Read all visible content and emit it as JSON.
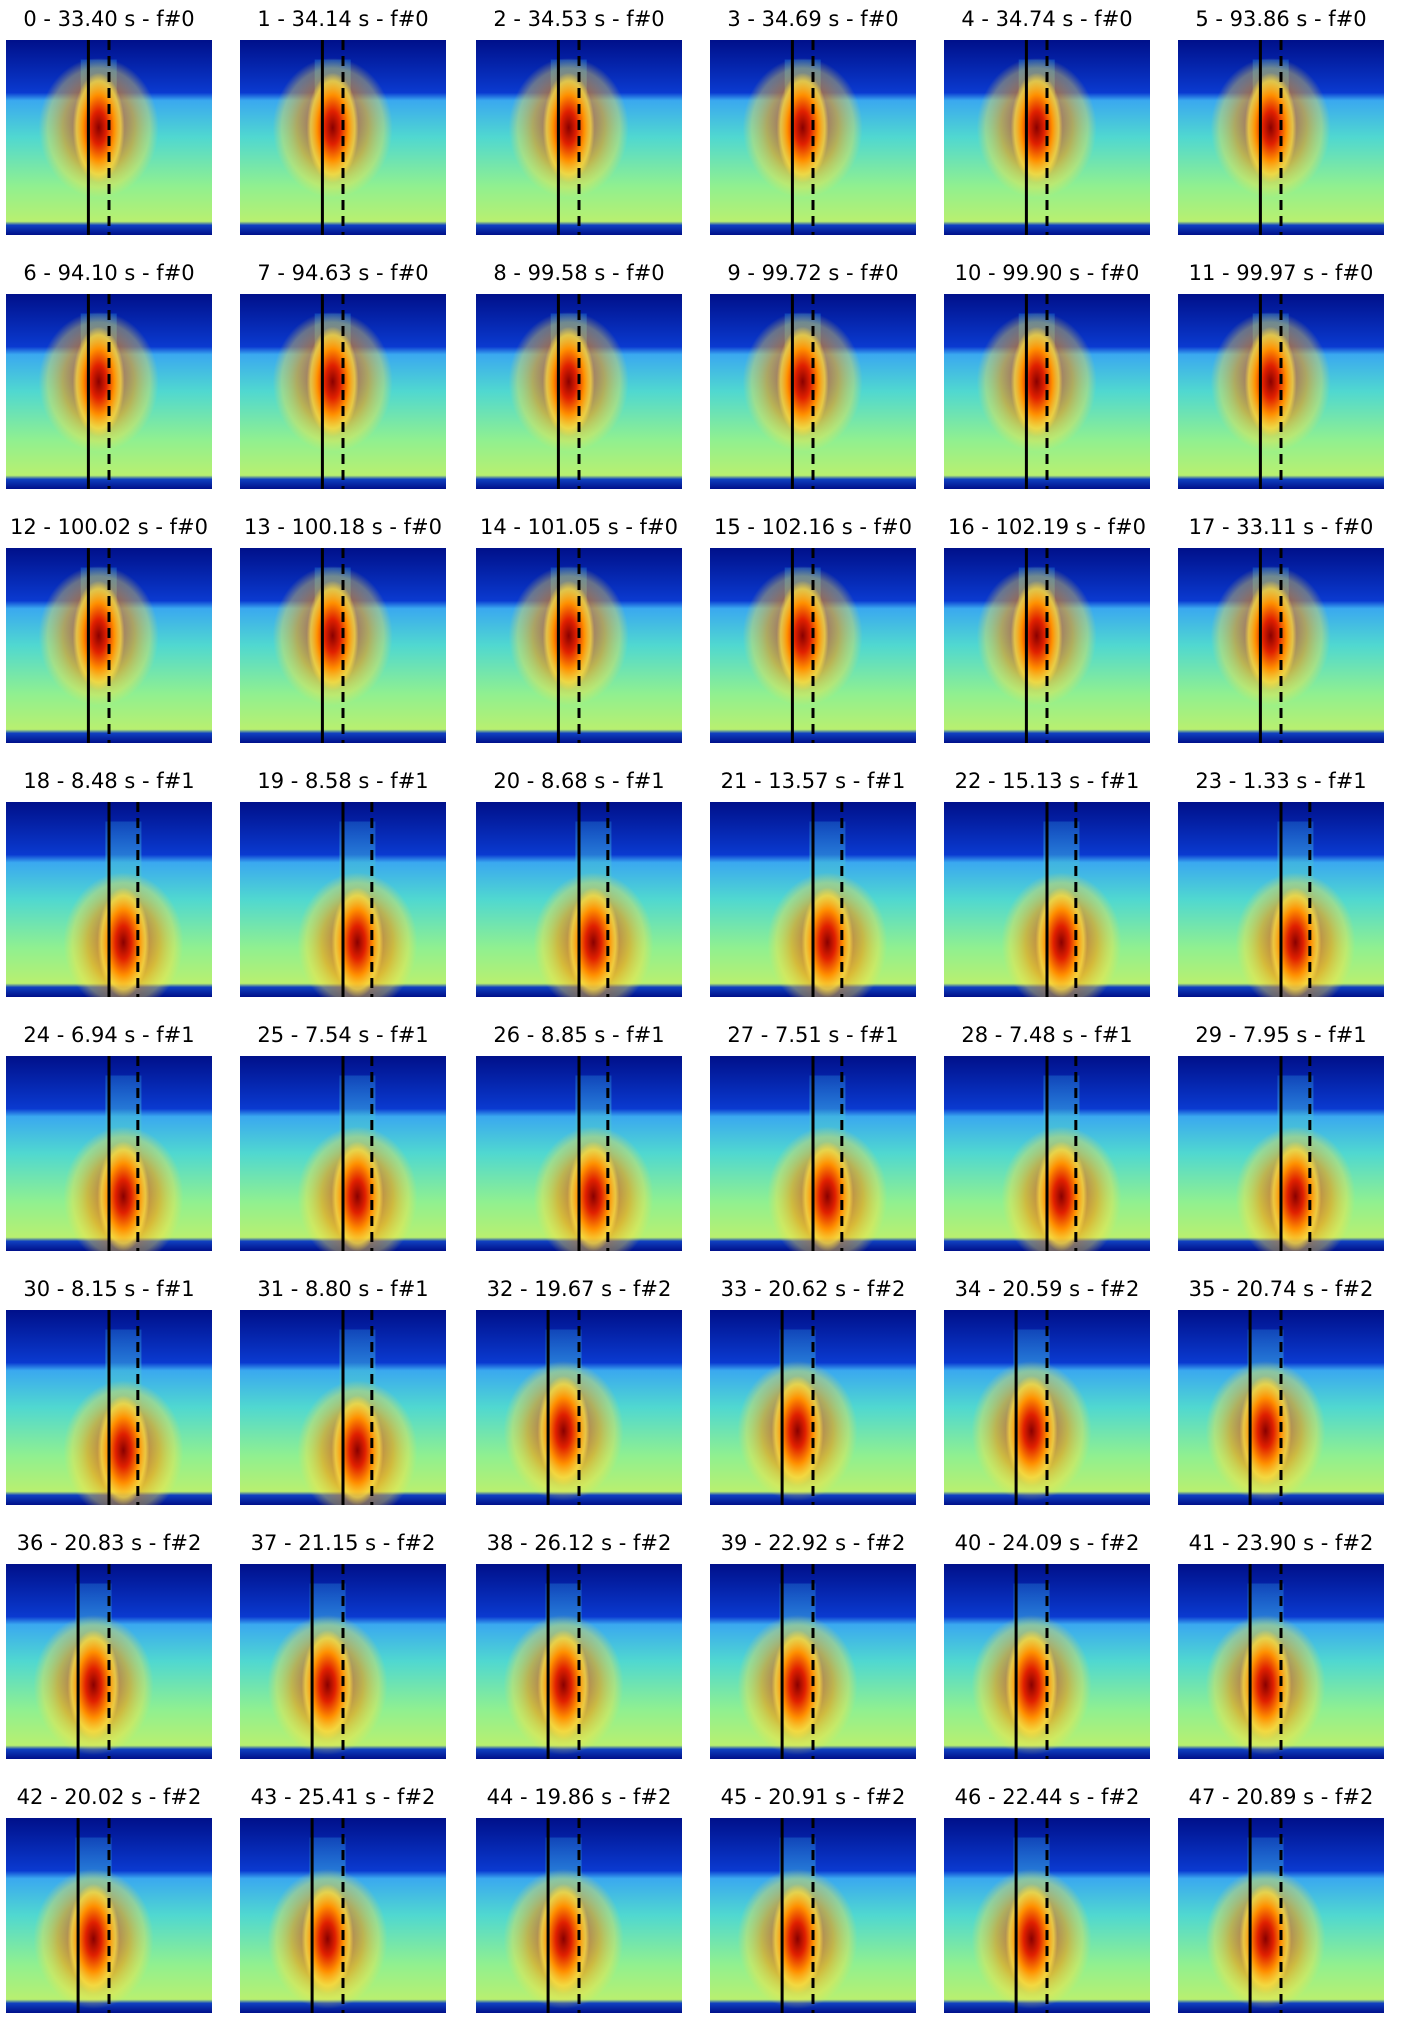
{
  "panels": [
    {
      "title": "0 - 33.40 s - f#0"
    },
    {
      "title": "1 - 34.14 s - f#0"
    },
    {
      "title": "2 - 34.53 s - f#0"
    },
    {
      "title": "3 - 34.69 s - f#0"
    },
    {
      "title": "4 - 34.74 s - f#0"
    },
    {
      "title": "5 - 93.86 s - f#0"
    },
    {
      "title": "6 - 94.10 s - f#0"
    },
    {
      "title": "7 - 94.63 s - f#0"
    },
    {
      "title": "8 - 99.58 s - f#0"
    },
    {
      "title": "9 - 99.72 s - f#0"
    },
    {
      "title": "10 - 99.90 s - f#0"
    },
    {
      "title": "11 - 99.97 s - f#0"
    },
    {
      "title": "12 - 100.02 s - f#0"
    },
    {
      "title": "13 - 100.18 s - f#0"
    },
    {
      "title": "14 - 101.05 s - f#0"
    },
    {
      "title": "15 - 102.16 s - f#0"
    },
    {
      "title": "16 - 102.19 s - f#0"
    },
    {
      "title": "17 - 33.11 s - f#0"
    },
    {
      "title": "18 - 8.48 s - f#1"
    },
    {
      "title": "19 - 8.58 s - f#1"
    },
    {
      "title": "20 - 8.68 s - f#1"
    },
    {
      "title": "21 - 13.57 s - f#1"
    },
    {
      "title": "22 - 15.13 s - f#1"
    },
    {
      "title": "23 - 1.33 s - f#1"
    },
    {
      "title": "24 - 6.94 s - f#1"
    },
    {
      "title": "25 - 7.54 s - f#1"
    },
    {
      "title": "26 - 8.85 s - f#1"
    },
    {
      "title": "27 - 7.51 s - f#1"
    },
    {
      "title": "28 - 7.48 s - f#1"
    },
    {
      "title": "29 - 7.95 s - f#1"
    },
    {
      "title": "30 - 8.15 s - f#1"
    },
    {
      "title": "31 - 8.80 s - f#1"
    },
    {
      "title": "32 - 19.67 s - f#2"
    },
    {
      "title": "33 - 20.62 s - f#2"
    },
    {
      "title": "34 - 20.59 s - f#2"
    },
    {
      "title": "35 - 20.74 s - f#2"
    },
    {
      "title": "36 - 20.83 s - f#2"
    },
    {
      "title": "37 - 21.15 s - f#2"
    },
    {
      "title": "38 - 26.12 s - f#2"
    },
    {
      "title": "39 - 22.92 s - f#2"
    },
    {
      "title": "40 - 24.09 s - f#2"
    },
    {
      "title": "41 - 23.90 s - f#2"
    },
    {
      "title": "42 - 20.02 s - f#2"
    },
    {
      "title": "43 - 25.41 s - f#2"
    },
    {
      "title": "44 - 19.86 s - f#2"
    },
    {
      "title": "45 - 20.91 s - f#2"
    },
    {
      "title": "46 - 22.44 s - f#2"
    },
    {
      "title": "47 - 20.89 s - f#2"
    }
  ]
}
